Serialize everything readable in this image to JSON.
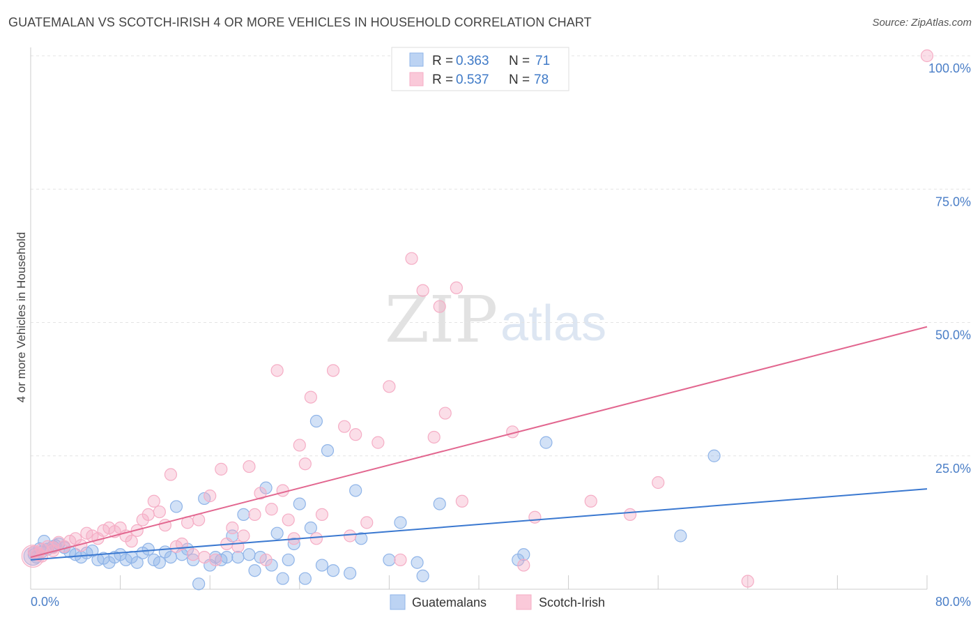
{
  "title": "GUATEMALAN VS SCOTCH-IRISH 4 OR MORE VEHICLES IN HOUSEHOLD CORRELATION CHART",
  "source": "Source: ZipAtlas.com",
  "watermark": {
    "zip": "ZIP",
    "atlas": "atlas"
  },
  "chart_data": {
    "type": "scatter",
    "ylabel": "4 or more Vehicles in Household",
    "xlim": [
      0,
      80
    ],
    "ylim": [
      0,
      100
    ],
    "x_tick_labels": [
      "0.0%",
      "80.0%"
    ],
    "y_tick_values": [
      25,
      50,
      75,
      100
    ],
    "y_tick_labels": [
      "25.0%",
      "50.0%",
      "75.0%",
      "100.0%"
    ],
    "grid": "horizontal dashed",
    "legend_top": [
      {
        "r_label": "R = ",
        "r_value": "0.363",
        "n_label": "N = ",
        "n_value": "71"
      },
      {
        "r_label": "R = ",
        "r_value": "0.537",
        "n_label": "N = ",
        "n_value": "78"
      }
    ],
    "series": [
      {
        "name": "Guatemalans",
        "color": "#8fb4e8",
        "line_color": "#3a78d0",
        "trend": [
          [
            0,
            5.5
          ],
          [
            80,
            18.8
          ]
        ],
        "points": [
          [
            0.3,
            6.5
          ],
          [
            0.5,
            6.0
          ],
          [
            1.0,
            7.0
          ],
          [
            1.5,
            7.5
          ],
          [
            2.0,
            8.0
          ],
          [
            2.5,
            8.5
          ],
          [
            3.0,
            7.8
          ],
          [
            3.5,
            7.0
          ],
          [
            4.0,
            6.5
          ],
          [
            4.5,
            6.0
          ],
          [
            5.0,
            6.8
          ],
          [
            5.5,
            7.2
          ],
          [
            6.0,
            5.5
          ],
          [
            6.5,
            5.8
          ],
          [
            7.0,
            5.0
          ],
          [
            7.5,
            6.0
          ],
          [
            8.0,
            6.5
          ],
          [
            8.5,
            5.5
          ],
          [
            9.0,
            6.0
          ],
          [
            9.5,
            5.0
          ],
          [
            10.0,
            6.8
          ],
          [
            10.5,
            7.5
          ],
          [
            11.0,
            5.5
          ],
          [
            11.5,
            5.0
          ],
          [
            12.0,
            7.0
          ],
          [
            12.5,
            6.0
          ],
          [
            13.0,
            15.5
          ],
          [
            13.5,
            6.5
          ],
          [
            14.0,
            7.5
          ],
          [
            14.5,
            5.5
          ],
          [
            15.0,
            1.0
          ],
          [
            15.5,
            17.0
          ],
          [
            16.0,
            4.5
          ],
          [
            16.5,
            6.0
          ],
          [
            17.0,
            5.5
          ],
          [
            17.5,
            6.0
          ],
          [
            18.0,
            10.0
          ],
          [
            18.5,
            6.0
          ],
          [
            19.0,
            14.0
          ],
          [
            19.5,
            6.5
          ],
          [
            20.0,
            3.5
          ],
          [
            20.5,
            6.0
          ],
          [
            21.0,
            19.0
          ],
          [
            21.5,
            4.5
          ],
          [
            22.0,
            10.5
          ],
          [
            22.5,
            2.0
          ],
          [
            23.0,
            5.5
          ],
          [
            23.5,
            8.5
          ],
          [
            24.0,
            16.0
          ],
          [
            24.5,
            2.0
          ],
          [
            25.0,
            11.5
          ],
          [
            25.5,
            31.5
          ],
          [
            26.0,
            4.5
          ],
          [
            26.5,
            26.0
          ],
          [
            27.0,
            3.5
          ],
          [
            28.5,
            3.0
          ],
          [
            29.0,
            18.5
          ],
          [
            29.5,
            9.5
          ],
          [
            32.0,
            5.5
          ],
          [
            33.0,
            12.5
          ],
          [
            34.5,
            5.0
          ],
          [
            35.0,
            2.5
          ],
          [
            36.5,
            16.0
          ],
          [
            43.5,
            5.5
          ],
          [
            44.0,
            6.5
          ],
          [
            46.0,
            27.5
          ],
          [
            58.0,
            10.0
          ],
          [
            61.0,
            25.0
          ],
          [
            1.2,
            9.0
          ],
          [
            2.2,
            8.2
          ],
          [
            0.8,
            7.6
          ]
        ]
      },
      {
        "name": "Scotch-Irish",
        "color": "#f5adc5",
        "line_color": "#e2668f",
        "trend": [
          [
            0,
            6.0
          ],
          [
            80,
            49.2
          ]
        ],
        "points": [
          [
            0.3,
            7.0
          ],
          [
            0.6,
            6.5
          ],
          [
            1.0,
            7.5
          ],
          [
            1.5,
            8.0
          ],
          [
            2.0,
            7.2
          ],
          [
            2.5,
            8.8
          ],
          [
            3.0,
            8.0
          ],
          [
            3.5,
            9.0
          ],
          [
            4.0,
            9.5
          ],
          [
            4.5,
            8.2
          ],
          [
            5.0,
            10.5
          ],
          [
            5.5,
            10.0
          ],
          [
            6.0,
            9.5
          ],
          [
            6.5,
            11.0
          ],
          [
            7.0,
            11.5
          ],
          [
            7.5,
            10.8
          ],
          [
            8.0,
            11.5
          ],
          [
            8.5,
            10.0
          ],
          [
            9.0,
            9.0
          ],
          [
            9.5,
            11.0
          ],
          [
            10.0,
            13.0
          ],
          [
            10.5,
            14.0
          ],
          [
            11.0,
            16.5
          ],
          [
            11.5,
            14.5
          ],
          [
            12.0,
            12.0
          ],
          [
            12.5,
            21.5
          ],
          [
            13.0,
            8.0
          ],
          [
            13.5,
            8.5
          ],
          [
            14.0,
            12.5
          ],
          [
            14.5,
            6.5
          ],
          [
            15.0,
            13.0
          ],
          [
            15.5,
            6.0
          ],
          [
            16.0,
            17.5
          ],
          [
            16.5,
            5.5
          ],
          [
            17.0,
            22.5
          ],
          [
            17.5,
            8.5
          ],
          [
            18.0,
            11.5
          ],
          [
            18.5,
            8.0
          ],
          [
            19.0,
            10.0
          ],
          [
            19.5,
            23.0
          ],
          [
            20.0,
            14.0
          ],
          [
            20.5,
            18.0
          ],
          [
            21.0,
            5.5
          ],
          [
            21.5,
            15.0
          ],
          [
            22.0,
            41.0
          ],
          [
            22.5,
            18.5
          ],
          [
            23.0,
            13.0
          ],
          [
            23.5,
            9.5
          ],
          [
            24.0,
            27.0
          ],
          [
            24.5,
            23.5
          ],
          [
            25.0,
            36.0
          ],
          [
            25.5,
            9.5
          ],
          [
            26.0,
            14.0
          ],
          [
            27.0,
            41.0
          ],
          [
            28.0,
            30.5
          ],
          [
            28.5,
            10.0
          ],
          [
            29.0,
            29.0
          ],
          [
            30.0,
            12.5
          ],
          [
            31.0,
            27.5
          ],
          [
            32.0,
            38.0
          ],
          [
            33.0,
            5.5
          ],
          [
            34.0,
            62.0
          ],
          [
            35.0,
            56.0
          ],
          [
            36.0,
            28.5
          ],
          [
            36.5,
            53.0
          ],
          [
            37.0,
            33.0
          ],
          [
            38.0,
            56.5
          ],
          [
            38.5,
            16.5
          ],
          [
            43.0,
            29.5
          ],
          [
            44.0,
            4.5
          ],
          [
            45.0,
            13.5
          ],
          [
            50.0,
            16.5
          ],
          [
            53.5,
            14.0
          ],
          [
            56.0,
            20.0
          ],
          [
            64.0,
            1.5
          ],
          [
            80.0,
            100.0
          ],
          [
            1.0,
            6.2
          ],
          [
            2.0,
            7.8
          ]
        ]
      }
    ]
  }
}
